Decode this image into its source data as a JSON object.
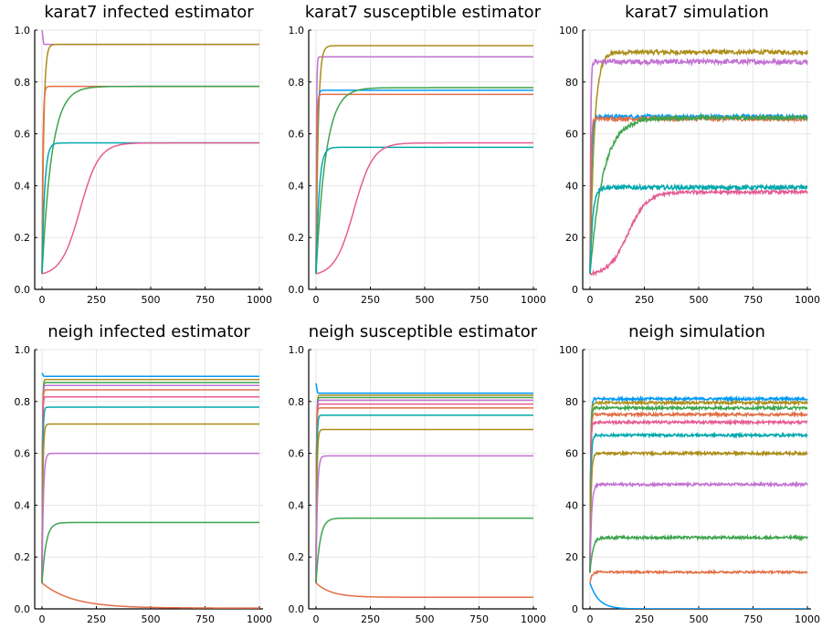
{
  "chart_data": [
    {
      "panel": "karat7-infected",
      "type": "line",
      "title": "karat7 infected estimator",
      "xlabel": "",
      "ylabel": "",
      "xlim": [
        0,
        1000
      ],
      "ylim": [
        0,
        1
      ],
      "xticks": [
        0,
        250,
        500,
        750,
        1000
      ],
      "xtick_labels": [
        "0",
        "250",
        "500",
        "750",
        "1000"
      ],
      "yticks": [
        0,
        0.2,
        0.4,
        0.6,
        0.8,
        1
      ],
      "ytick_labels": [
        "0.0",
        "0.2",
        "0.4",
        "0.6",
        "0.8",
        "1.0"
      ],
      "grid": true,
      "legend": "none",
      "series": [
        {
          "color": "#c271d2",
          "start": 0.95,
          "end": 0.945,
          "tau": 1,
          "spike": 1.0
        },
        {
          "color": "#ac8d18",
          "start": 0.06,
          "end": 0.945,
          "tau": 8
        },
        {
          "color": "#e26f46",
          "start": 0.06,
          "end": 0.783,
          "tau": 4
        },
        {
          "color": "#3da44d",
          "start": 0.06,
          "end": 0.783,
          "tau": 45
        },
        {
          "color": "#00a9ad",
          "start": 0.06,
          "end": 0.565,
          "tau": 12
        },
        {
          "color": "#e55c94",
          "start": 0.06,
          "end": 0.565,
          "tau": 175,
          "sigmoid": true
        }
      ]
    },
    {
      "panel": "karat7-susceptible",
      "type": "line",
      "title": "karat7 susceptible estimator",
      "xlabel": "",
      "ylabel": "",
      "xlim": [
        0,
        1000
      ],
      "ylim": [
        0,
        1
      ],
      "xticks": [
        0,
        250,
        500,
        750,
        1000
      ],
      "xtick_labels": [
        "0",
        "250",
        "500",
        "750",
        "1000"
      ],
      "yticks": [
        0,
        0.2,
        0.4,
        0.6,
        0.8,
        1
      ],
      "ytick_labels": [
        "0.0",
        "0.2",
        "0.4",
        "0.6",
        "0.8",
        "1.0"
      ],
      "grid": true,
      "legend": "none",
      "series": [
        {
          "color": "#c271d2",
          "start": 0.06,
          "end": 0.897,
          "tau": 2
        },
        {
          "color": "#ac8d18",
          "start": 0.06,
          "end": 0.94,
          "tau": 10
        },
        {
          "color": "#009af9",
          "start": 0.06,
          "end": 0.768,
          "tau": 4
        },
        {
          "color": "#e26f46",
          "start": 0.06,
          "end": 0.752,
          "tau": 3
        },
        {
          "color": "#3da44d",
          "start": 0.06,
          "end": 0.778,
          "tau": 45
        },
        {
          "color": "#00a9ad",
          "start": 0.06,
          "end": 0.548,
          "tau": 14
        },
        {
          "color": "#e55c94",
          "start": 0.06,
          "end": 0.565,
          "tau": 175,
          "sigmoid": true
        }
      ]
    },
    {
      "panel": "karat7-simulation",
      "type": "line",
      "title": "karat7 simulation",
      "xlabel": "",
      "ylabel": "",
      "xlim": [
        0,
        1000
      ],
      "ylim": [
        0,
        100
      ],
      "xticks": [
        0,
        250,
        500,
        750,
        1000
      ],
      "xtick_labels": [
        "0",
        "250",
        "500",
        "750",
        "1000"
      ],
      "yticks": [
        0,
        20,
        40,
        60,
        80,
        100
      ],
      "ytick_labels": [
        "0",
        "20",
        "40",
        "60",
        "80",
        "100"
      ],
      "grid": true,
      "legend": "none",
      "series": [
        {
          "color": "#ac8d18",
          "start": 6,
          "end": 91.5,
          "tau": 20,
          "noise": 0.8
        },
        {
          "color": "#c271d2",
          "start": 6,
          "end": 87.8,
          "tau": 3,
          "noise": 0.9
        },
        {
          "color": "#009af9",
          "start": 6,
          "end": 66.6,
          "tau": 6,
          "noise": 0.8
        },
        {
          "color": "#e26f46",
          "start": 6,
          "end": 65.8,
          "tau": 4,
          "noise": 0.8
        },
        {
          "color": "#3da44d",
          "start": 6,
          "end": 66.2,
          "tau": 60,
          "noise": 0.8
        },
        {
          "color": "#00a9ad",
          "start": 6,
          "end": 39.3,
          "tau": 12,
          "noise": 0.8
        },
        {
          "color": "#e55c94",
          "start": 6,
          "end": 37.5,
          "tau": 175,
          "sigmoid": true,
          "noise": 0.6
        }
      ]
    },
    {
      "panel": "neigh-infected",
      "type": "line",
      "title": "neigh infected estimator",
      "xlabel": "",
      "ylabel": "",
      "xlim": [
        0,
        1000
      ],
      "ylim": [
        0,
        1
      ],
      "xticks": [
        0,
        250,
        500,
        750,
        1000
      ],
      "xtick_labels": [
        "0",
        "250",
        "500",
        "750",
        "1000"
      ],
      "yticks": [
        0,
        0.2,
        0.4,
        0.6,
        0.8,
        1
      ],
      "ytick_labels": [
        "0.0",
        "0.2",
        "0.4",
        "0.6",
        "0.8",
        "1.0"
      ],
      "grid": true,
      "legend": "none",
      "series": [
        {
          "color": "#009af9",
          "start": 0.1,
          "end": 0.897,
          "tau": 1,
          "spike": 0.91
        },
        {
          "color": "#ac8d18",
          "start": 0.1,
          "end": 0.885,
          "tau": 2
        },
        {
          "color": "#3da44d",
          "start": 0.1,
          "end": 0.873,
          "tau": 2
        },
        {
          "color": "#c271d2",
          "start": 0.1,
          "end": 0.862,
          "tau": 2
        },
        {
          "color": "#e26f46",
          "start": 0.1,
          "end": 0.845,
          "tau": 2
        },
        {
          "color": "#e55c94",
          "start": 0.1,
          "end": 0.818,
          "tau": 2
        },
        {
          "color": "#00a9ad",
          "start": 0.1,
          "end": 0.778,
          "tau": 3
        },
        {
          "color": "#ac8d18",
          "start": 0.1,
          "end": 0.713,
          "tau": 4
        },
        {
          "color": "#c271d2",
          "start": 0.1,
          "end": 0.6,
          "tau": 6
        },
        {
          "color": "#3da44d",
          "start": 0.1,
          "end": 0.333,
          "tau": 18
        },
        {
          "color": "#e26f46",
          "start": 0.1,
          "end": 0.003,
          "tau": 140
        }
      ]
    },
    {
      "panel": "neigh-susceptible",
      "type": "line",
      "title": "neigh susceptible estimator",
      "xlabel": "",
      "ylabel": "",
      "xlim": [
        0,
        1000
      ],
      "ylim": [
        0,
        1
      ],
      "xticks": [
        0,
        250,
        500,
        750,
        1000
      ],
      "xtick_labels": [
        "0",
        "250",
        "500",
        "750",
        "1000"
      ],
      "yticks": [
        0,
        0.2,
        0.4,
        0.6,
        0.8,
        1
      ],
      "ytick_labels": [
        "0.0",
        "0.2",
        "0.4",
        "0.6",
        "0.8",
        "1.0"
      ],
      "grid": true,
      "legend": "none",
      "series": [
        {
          "color": "#009af9",
          "start": 0.1,
          "end": 0.832,
          "tau": 1,
          "spike": 0.87
        },
        {
          "color": "#ac8d18",
          "start": 0.1,
          "end": 0.824,
          "tau": 2
        },
        {
          "color": "#3da44d",
          "start": 0.1,
          "end": 0.815,
          "tau": 2
        },
        {
          "color": "#c271d2",
          "start": 0.1,
          "end": 0.805,
          "tau": 2
        },
        {
          "color": "#e55c94",
          "start": 0.1,
          "end": 0.79,
          "tau": 2
        },
        {
          "color": "#e26f46",
          "start": 0.1,
          "end": 0.775,
          "tau": 2
        },
        {
          "color": "#00a9ad",
          "start": 0.1,
          "end": 0.747,
          "tau": 3
        },
        {
          "color": "#ac8d18",
          "start": 0.1,
          "end": 0.692,
          "tau": 4
        },
        {
          "color": "#c271d2",
          "start": 0.1,
          "end": 0.59,
          "tau": 6
        },
        {
          "color": "#3da44d",
          "start": 0.1,
          "end": 0.35,
          "tau": 18
        },
        {
          "color": "#e26f46",
          "start": 0.1,
          "end": 0.045,
          "tau": 70
        }
      ]
    },
    {
      "panel": "neigh-simulation",
      "type": "line",
      "title": "neigh simulation",
      "xlabel": "",
      "ylabel": "",
      "xlim": [
        0,
        1000
      ],
      "ylim": [
        0,
        100
      ],
      "xticks": [
        0,
        250,
        500,
        750,
        1000
      ],
      "xtick_labels": [
        "0",
        "250",
        "500",
        "750",
        "1000"
      ],
      "yticks": [
        0,
        20,
        40,
        60,
        80,
        100
      ],
      "ytick_labels": [
        "0",
        "20",
        "40",
        "60",
        "80",
        "100"
      ],
      "grid": true,
      "legend": "none",
      "series": [
        {
          "color": "#009af9",
          "start": 14,
          "end": 81.0,
          "tau": 3,
          "noise": 0.5
        },
        {
          "color": "#ac8d18",
          "start": 14,
          "end": 79.5,
          "tau": 3,
          "noise": 0.5
        },
        {
          "color": "#3da44d",
          "start": 14,
          "end": 77.5,
          "tau": 3,
          "noise": 0.5
        },
        {
          "color": "#e26f46",
          "start": 14,
          "end": 75.0,
          "tau": 3,
          "noise": 0.5
        },
        {
          "color": "#e55c94",
          "start": 14,
          "end": 72.0,
          "tau": 3,
          "noise": 0.5
        },
        {
          "color": "#00a9ad",
          "start": 14,
          "end": 67.0,
          "tau": 4,
          "noise": 0.5
        },
        {
          "color": "#ac8d18",
          "start": 14,
          "end": 60.0,
          "tau": 5,
          "noise": 0.5
        },
        {
          "color": "#c271d2",
          "start": 14,
          "end": 48.0,
          "tau": 7,
          "noise": 0.5
        },
        {
          "color": "#3da44d",
          "start": 14,
          "end": 27.5,
          "tau": 12,
          "noise": 0.5
        },
        {
          "color": "#e26f46",
          "start": 10,
          "end": 14.2,
          "tau": 8,
          "noise": 0.4
        },
        {
          "color": "#009af9",
          "start": 10,
          "end": 0.0,
          "tau": 40,
          "noise": 0
        }
      ]
    }
  ]
}
